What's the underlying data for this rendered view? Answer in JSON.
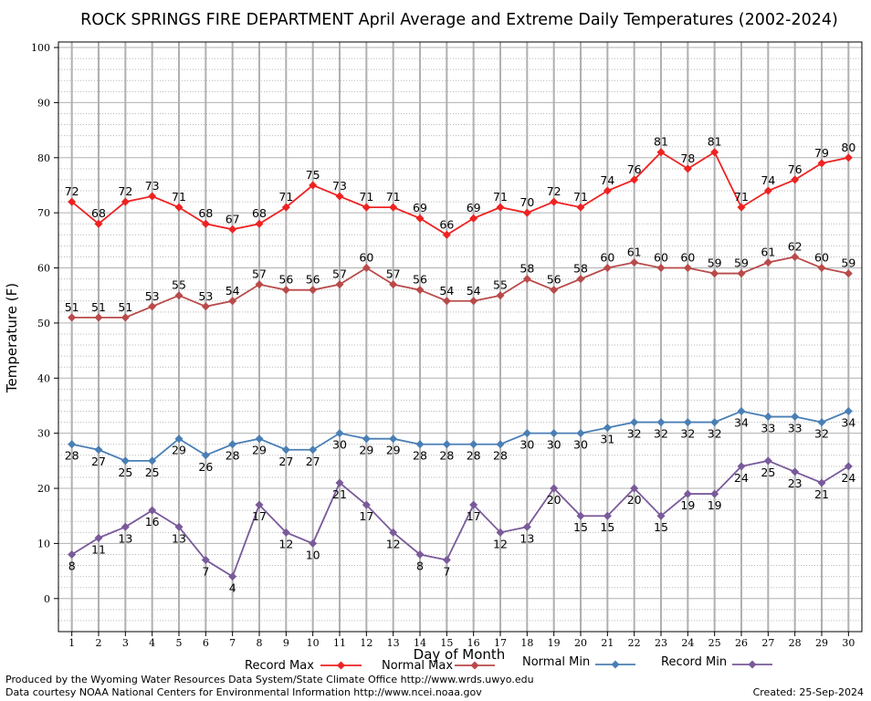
{
  "chart_data": {
    "type": "line",
    "title": "ROCK SPRINGS FIRE DEPARTMENT April Average and Extreme Daily Temperatures (2002-2024)",
    "xlabel": "Day of Month",
    "ylabel": "Temperature (F)",
    "x": [
      1,
      2,
      3,
      4,
      5,
      6,
      7,
      8,
      9,
      10,
      11,
      12,
      13,
      14,
      15,
      16,
      17,
      18,
      19,
      20,
      21,
      22,
      23,
      24,
      25,
      26,
      27,
      28,
      29,
      30
    ],
    "xlim": [
      0.5,
      30.5
    ],
    "ylim": [
      -6,
      101
    ],
    "yticks": [
      0,
      10,
      20,
      30,
      40,
      50,
      60,
      70,
      80,
      90,
      100
    ],
    "grid": true,
    "series": [
      {
        "name": "Record Max",
        "color": "#ee2222",
        "label_position": "above",
        "values": [
          72,
          68,
          72,
          73,
          71,
          68,
          67,
          68,
          71,
          75,
          73,
          71,
          71,
          69,
          66,
          69,
          71,
          70,
          72,
          71,
          74,
          76,
          81,
          78,
          81,
          71,
          74,
          76,
          79,
          80
        ]
      },
      {
        "name": "Normal Max",
        "color": "#b94a4a",
        "label_position": "above",
        "values": [
          51,
          51,
          51,
          53,
          55,
          53,
          54,
          57,
          56,
          56,
          57,
          60,
          57,
          56,
          54,
          54,
          55,
          58,
          56,
          58,
          60,
          61,
          60,
          60,
          59,
          59,
          61,
          62,
          60,
          59
        ]
      },
      {
        "name": "Normal Min",
        "color": "#4a7fb5",
        "label_position": "below",
        "values": [
          28,
          27,
          25,
          25,
          29,
          26,
          28,
          29,
          27,
          27,
          30,
          29,
          29,
          28,
          28,
          28,
          28,
          30,
          30,
          30,
          31,
          32,
          32,
          32,
          32,
          34,
          33,
          33,
          32,
          34
        ]
      },
      {
        "name": "Record Min",
        "color": "#7a5a9a",
        "label_position": "below",
        "values": [
          8,
          11,
          13,
          16,
          13,
          7,
          4,
          17,
          12,
          10,
          21,
          17,
          12,
          8,
          7,
          17,
          12,
          13,
          20,
          15,
          15,
          20,
          15,
          19,
          19,
          24,
          25,
          23,
          21,
          24
        ]
      }
    ]
  },
  "footer": {
    "produced_by": "Produced by the Wyoming Water Resources Data System/State Climate Office http://www.wrds.uwyo.edu",
    "data_courtesy": "Data courtesy NOAA National Centers for Environmental Information http://www.ncei.noaa.gov",
    "created": "Created:  25-Sep-2024"
  }
}
